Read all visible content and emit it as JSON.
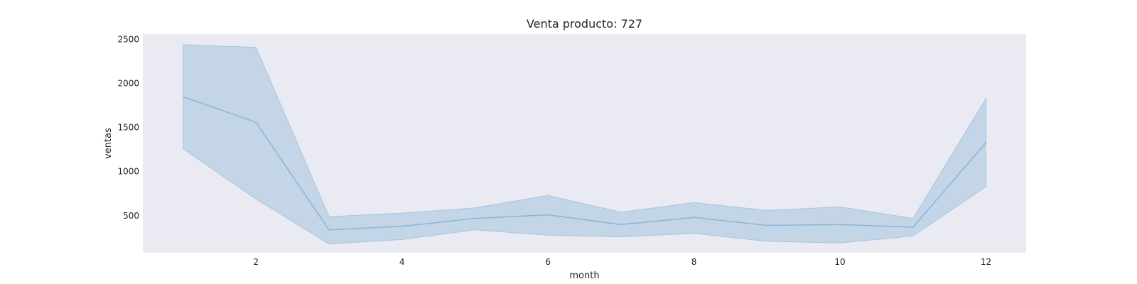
{
  "chart_data": {
    "type": "line",
    "title": "Venta producto: 727",
    "xlabel": "month",
    "ylabel": "ventas",
    "x": [
      1,
      2,
      3,
      4,
      5,
      6,
      7,
      8,
      9,
      10,
      11,
      12
    ],
    "series": [
      {
        "values": [
          1850,
          1560,
          340,
          380,
          470,
          510,
          400,
          480,
          390,
          400,
          370,
          1330
        ],
        "ci_upper": [
          2440,
          2410,
          490,
          530,
          590,
          730,
          540,
          650,
          560,
          600,
          470,
          1830
        ],
        "ci_lower": [
          1260,
          690,
          180,
          230,
          340,
          280,
          260,
          300,
          210,
          190,
          270,
          830
        ]
      }
    ],
    "xticks": [
      "2",
      "4",
      "6",
      "8",
      "10",
      "12"
    ],
    "yticks": [
      "500",
      "1000",
      "1500",
      "2000",
      "2500"
    ],
    "xlim": [
      0.45,
      12.55
    ],
    "ylim": [
      80,
      2560
    ],
    "grid": false,
    "colors": {
      "line": "#8bb5da",
      "band": "#b6cde3",
      "plot_background": "#eaeaf2"
    }
  }
}
